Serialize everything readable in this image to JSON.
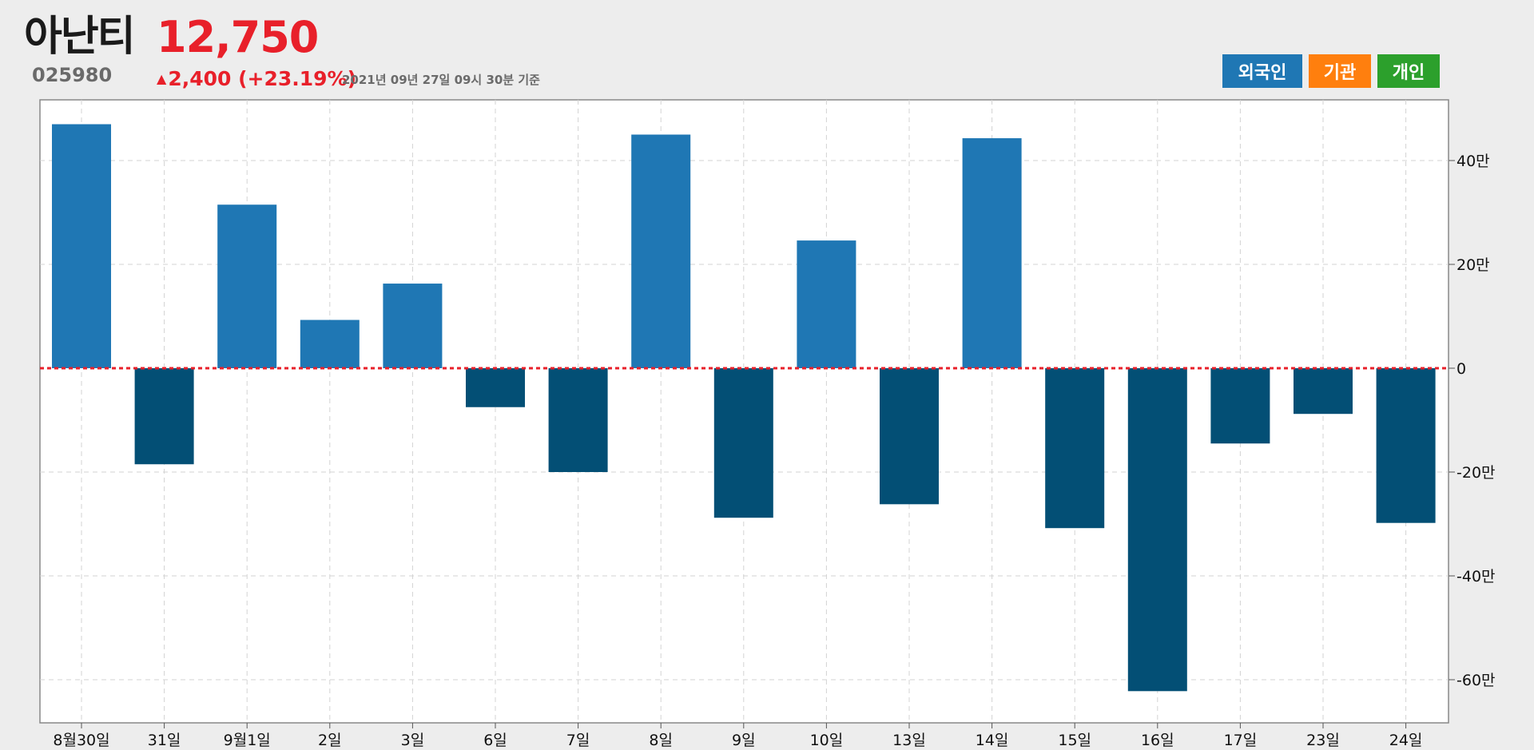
{
  "stock": {
    "name": "아난티",
    "price": "12,750",
    "code": "025980",
    "change_arrow": "▲",
    "change": "2,400 (+23.19%)",
    "timestamp": "2021년 09년 27일 09시 30분 기준"
  },
  "legend": {
    "foreign": "외국인",
    "institution": "기관",
    "individual": "개인"
  },
  "colors": {
    "positive": "#1f77b4",
    "negative": "#034f75",
    "zero_line": "#e8202a",
    "foreign": "#1f77b4",
    "institution": "#ff7f0e",
    "individual": "#2ca02c"
  },
  "chart_data": {
    "type": "bar",
    "categories": [
      "8월30일",
      "31일",
      "9월1일",
      "2일",
      "3일",
      "6일",
      "7일",
      "8일",
      "9일",
      "10일",
      "13일",
      "14일",
      "15일",
      "16일",
      "17일",
      "23일",
      "24일"
    ],
    "series": [
      {
        "name": "외국인",
        "values": [
          470000,
          -185000,
          315000,
          93000,
          163000,
          -75000,
          -200000,
          450000,
          -288000,
          246000,
          -262000,
          443000,
          -308000,
          -622000,
          -145000,
          -88000,
          -298000
        ]
      }
    ],
    "yticks": [
      {
        "value": 400000,
        "label": "40만"
      },
      {
        "value": 200000,
        "label": "20만"
      },
      {
        "value": 0,
        "label": "0"
      },
      {
        "value": -200000,
        "label": "-20만"
      },
      {
        "value": -400000,
        "label": "-40만"
      },
      {
        "value": -600000,
        "label": "-60만"
      }
    ],
    "ylim": [
      -680000,
      515000
    ],
    "grid": true,
    "y_axis_side": "right"
  }
}
